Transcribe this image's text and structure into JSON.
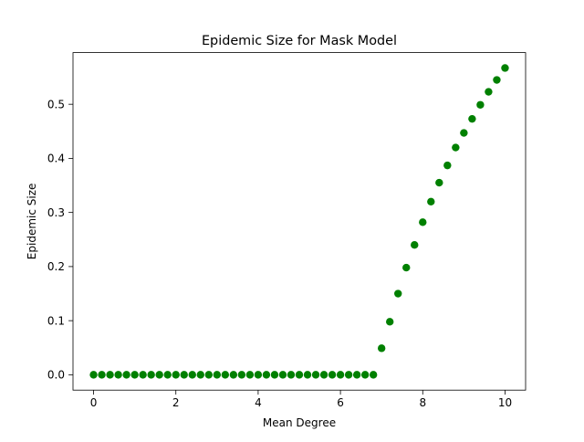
{
  "chart_data": {
    "type": "scatter",
    "title": "Epidemic Size for Mask Model",
    "xlabel": "Mean Degree",
    "ylabel": "Epidemic Size",
    "xlim": [
      -0.5,
      10.5
    ],
    "ylim": [
      -0.0284,
      0.5955
    ],
    "xticks": [
      0,
      2,
      4,
      6,
      8,
      10
    ],
    "yticks": [
      0.0,
      0.1,
      0.2,
      0.3,
      0.4,
      0.5
    ],
    "xtick_labels": [
      "0",
      "2",
      "4",
      "6",
      "8",
      "10"
    ],
    "ytick_labels": [
      "0.0",
      "0.1",
      "0.2",
      "0.3",
      "0.4",
      "0.5"
    ],
    "grid": false,
    "legend": false,
    "marker_color": "#008000",
    "x": [
      0,
      0.2,
      0.4,
      0.6,
      0.8,
      1.0,
      1.2,
      1.4,
      1.6,
      1.8,
      2.0,
      2.2,
      2.4,
      2.6,
      2.8,
      3.0,
      3.2,
      3.4,
      3.6,
      3.8,
      4.0,
      4.2,
      4.4,
      4.6,
      4.8,
      5.0,
      5.2,
      5.4,
      5.6,
      5.8,
      6.0,
      6.2,
      6.4,
      6.6,
      6.8,
      7.0,
      7.2,
      7.4,
      7.6,
      7.8,
      8.0,
      8.2,
      8.4,
      8.6,
      8.8,
      9.0,
      9.2,
      9.4,
      9.6,
      9.8,
      10.0
    ],
    "y": [
      0,
      0,
      0,
      0,
      0,
      0,
      0,
      0,
      0,
      0,
      0,
      0,
      0,
      0,
      0,
      0,
      0,
      0,
      0,
      0,
      0,
      0,
      0,
      0,
      0,
      0,
      0,
      0,
      0,
      0,
      0,
      0,
      0,
      0,
      0,
      0.049,
      0.098,
      0.15,
      0.198,
      0.24,
      0.282,
      0.32,
      0.355,
      0.387,
      0.42,
      0.447,
      0.473,
      0.499,
      0.523,
      0.545,
      0.567
    ]
  }
}
